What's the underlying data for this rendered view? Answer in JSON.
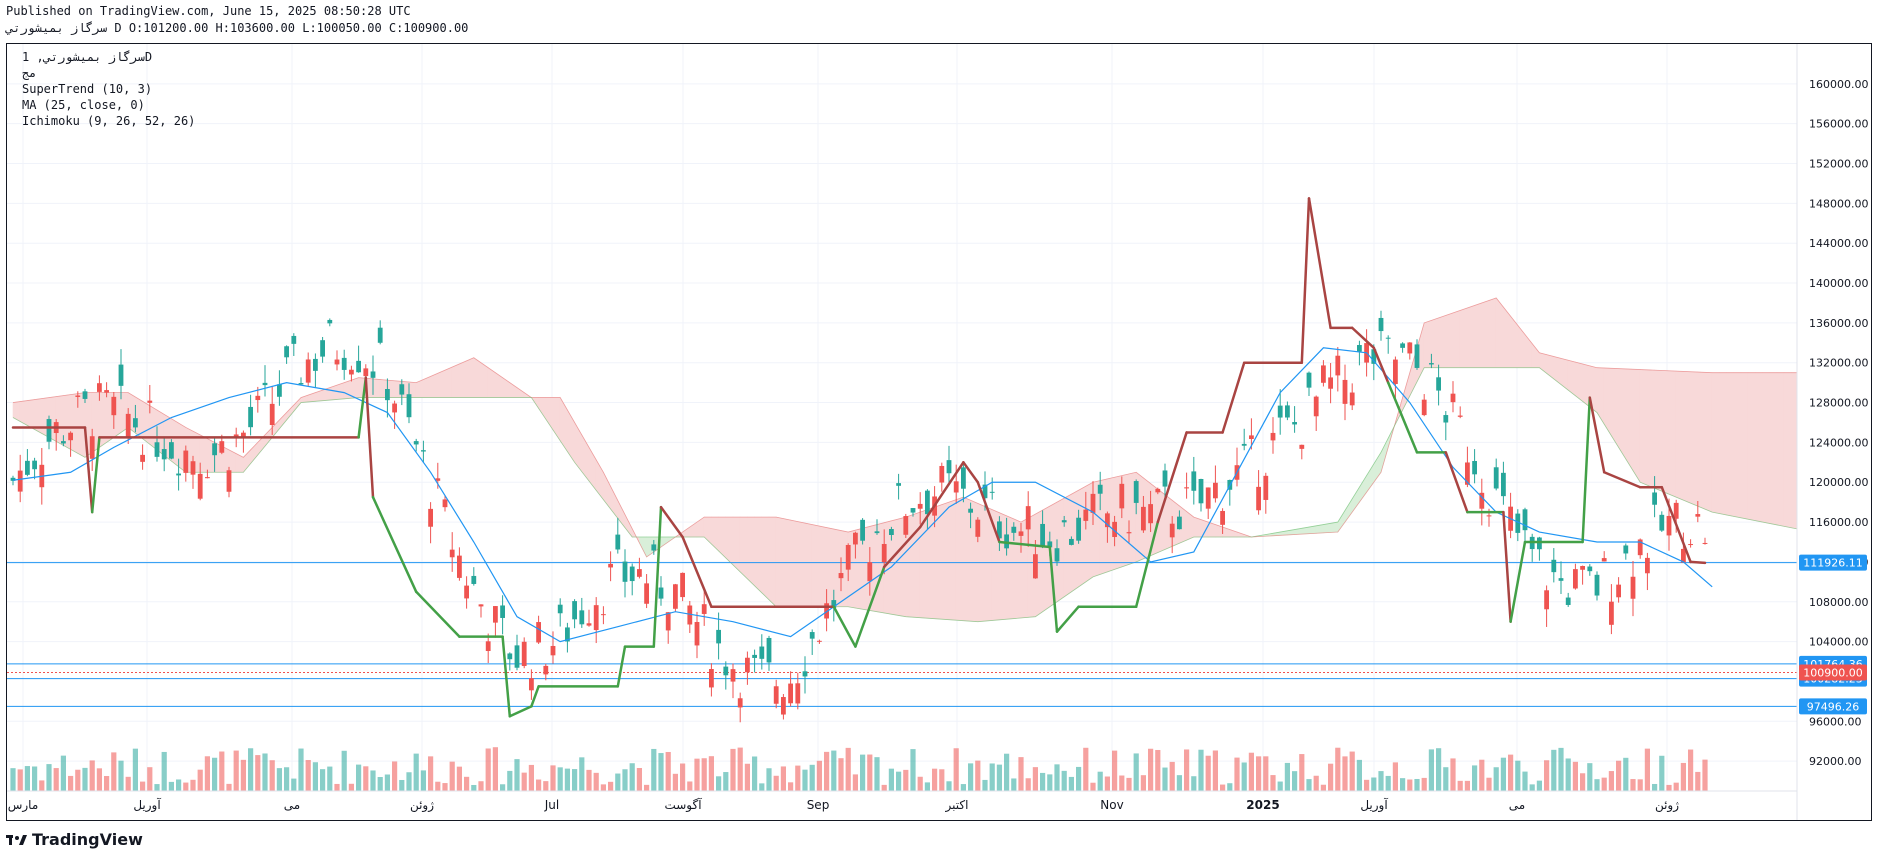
{
  "header": {
    "published": "Published on TradingView.com, June 15, 2025 08:50:28 UTC",
    "ohlc": "سرگاز بمیشورتي D O:101200.00 H:103600.00 L:100050.00 C:100900.00"
  },
  "legend": {
    "symbol": "سرگاز بمیشورتي, 1D",
    "sub": "مج",
    "indicators": [
      "SuperTrend (10, 3)",
      "MA (25, close, 0)",
      "Ichimoku (9, 26, 52, 26)"
    ]
  },
  "footer": {
    "brand": "TradingView"
  },
  "colors": {
    "up": "#26a69a",
    "down": "#ef5350",
    "supertrend_up": "#43a047",
    "supertrend_down": "#a94442",
    "ma": "#2196f3",
    "cloud_bear": "#f8d9d9",
    "cloud_bull": "#d9efd9",
    "hline": "#2196f3",
    "price_tag": "#ef5350",
    "level_tag": "#2196f3"
  },
  "chart_data": {
    "type": "candlestick",
    "ylim": [
      89000,
      164000
    ],
    "yticks": [
      "160000.00",
      "156000.00",
      "152000.00",
      "148000.00",
      "144000.00",
      "140000.00",
      "136000.00",
      "132000.00",
      "128000.00",
      "124000.00",
      "120000.00",
      "116000.00",
      "112000.00",
      "108000.00",
      "104000.00",
      "96000.00",
      "92000.00"
    ],
    "xticks": [
      "مارس",
      "آوریل",
      "می",
      "ژوئن",
      "Jul",
      "آگوست",
      "Sep",
      "اکتبر",
      "Nov",
      "2025",
      "آوریل",
      "می",
      "ژوئن"
    ],
    "last_price": "100900.00",
    "horizontal_levels": [
      {
        "value": 111926.11,
        "label": "111926.11"
      },
      {
        "value": 101764.36,
        "label": "101764.36"
      },
      {
        "value": 100282.23,
        "label": "100282.23"
      },
      {
        "value": 97496.26,
        "label": "97496.26"
      }
    ],
    "series": [
      {
        "name": "SuperTrend",
        "points": [
          [
            0,
            125500
          ],
          [
            10,
            125500
          ],
          [
            11,
            117000
          ],
          [
            12,
            124500
          ],
          [
            48,
            124500
          ],
          [
            49,
            130500
          ],
          [
            50,
            118500
          ],
          [
            56,
            109000
          ],
          [
            62,
            104500
          ],
          [
            68,
            104500
          ],
          [
            69,
            96500
          ],
          [
            72,
            97500
          ],
          [
            73,
            99500
          ],
          [
            84,
            99500
          ],
          [
            85,
            103500
          ],
          [
            89,
            103500
          ],
          [
            90,
            117500
          ],
          [
            93,
            114500
          ],
          [
            97,
            107500
          ],
          [
            114,
            107500
          ],
          [
            117,
            103500
          ],
          [
            121,
            111500
          ],
          [
            126,
            115500
          ],
          [
            132,
            122000
          ],
          [
            134,
            120000
          ],
          [
            137,
            114000
          ],
          [
            144,
            113500
          ],
          [
            145,
            105000
          ],
          [
            148,
            107500
          ],
          [
            156,
            107500
          ],
          [
            159,
            116000
          ],
          [
            163,
            125000
          ],
          [
            168,
            125000
          ],
          [
            171,
            132000
          ],
          [
            179,
            132000
          ],
          [
            180,
            148500
          ],
          [
            183,
            135500
          ],
          [
            186,
            135500
          ],
          [
            189,
            133500
          ],
          [
            191,
            130000
          ],
          [
            195,
            123000
          ],
          [
            199,
            123000
          ],
          [
            202,
            117000
          ],
          [
            207,
            117000
          ],
          [
            208,
            106000
          ],
          [
            210,
            114000
          ],
          [
            218,
            114000
          ],
          [
            219,
            128500
          ],
          [
            221,
            121000
          ],
          [
            226,
            119500
          ],
          [
            229,
            119500
          ],
          [
            233,
            112000
          ],
          [
            235,
            111900
          ]
        ]
      },
      {
        "name": "MA",
        "points": [
          [
            0,
            120200
          ],
          [
            8,
            121000
          ],
          [
            14,
            123500
          ],
          [
            22,
            126500
          ],
          [
            30,
            128500
          ],
          [
            38,
            130000
          ],
          [
            46,
            129000
          ],
          [
            52,
            127000
          ],
          [
            58,
            121000
          ],
          [
            64,
            114000
          ],
          [
            70,
            106500
          ],
          [
            76,
            104000
          ],
          [
            84,
            105500
          ],
          [
            92,
            107000
          ],
          [
            100,
            106000
          ],
          [
            108,
            104500
          ],
          [
            114,
            107500
          ],
          [
            122,
            111500
          ],
          [
            130,
            117500
          ],
          [
            136,
            120000
          ],
          [
            142,
            120000
          ],
          [
            150,
            117000
          ],
          [
            158,
            112000
          ],
          [
            164,
            113000
          ],
          [
            170,
            121000
          ],
          [
            176,
            129000
          ],
          [
            182,
            133500
          ],
          [
            188,
            133000
          ],
          [
            194,
            128000
          ],
          [
            200,
            121500
          ],
          [
            206,
            117000
          ],
          [
            212,
            115000
          ],
          [
            220,
            114000
          ],
          [
            226,
            114000
          ],
          [
            232,
            112000
          ],
          [
            236,
            109500
          ]
        ]
      },
      {
        "name": "Cloud-upper",
        "points": [
          [
            0,
            128000
          ],
          [
            10,
            129000
          ],
          [
            16,
            129000
          ],
          [
            24,
            125500
          ],
          [
            32,
            122500
          ],
          [
            40,
            128500
          ],
          [
            48,
            130500
          ],
          [
            56,
            130000
          ],
          [
            64,
            132500
          ],
          [
            72,
            128500
          ],
          [
            76,
            128500
          ],
          [
            82,
            121000
          ],
          [
            88,
            112500
          ],
          [
            96,
            116500
          ],
          [
            106,
            116500
          ],
          [
            116,
            115000
          ],
          [
            124,
            116500
          ],
          [
            132,
            118500
          ],
          [
            140,
            116000
          ],
          [
            150,
            120000
          ],
          [
            156,
            121000
          ],
          [
            164,
            116500
          ],
          [
            172,
            114500
          ],
          [
            184,
            115000
          ],
          [
            190,
            121000
          ],
          [
            196,
            136000
          ],
          [
            206,
            138500
          ],
          [
            212,
            133000
          ],
          [
            220,
            131500
          ],
          [
            236,
            131000
          ],
          [
            250,
            131000
          ]
        ]
      },
      {
        "name": "Cloud-lower",
        "points": [
          [
            0,
            126500
          ],
          [
            10,
            122500
          ],
          [
            16,
            125500
          ],
          [
            24,
            121000
          ],
          [
            32,
            121000
          ],
          [
            40,
            128000
          ],
          [
            48,
            128500
          ],
          [
            56,
            128500
          ],
          [
            64,
            128500
          ],
          [
            72,
            128500
          ],
          [
            78,
            122000
          ],
          [
            86,
            114500
          ],
          [
            96,
            114500
          ],
          [
            106,
            107500
          ],
          [
            116,
            107500
          ],
          [
            124,
            106500
          ],
          [
            134,
            106000
          ],
          [
            142,
            106500
          ],
          [
            150,
            110500
          ],
          [
            156,
            112000
          ],
          [
            164,
            114500
          ],
          [
            172,
            114500
          ],
          [
            184,
            116000
          ],
          [
            190,
            123000
          ],
          [
            196,
            131500
          ],
          [
            206,
            131500
          ],
          [
            212,
            131500
          ],
          [
            220,
            127000
          ],
          [
            226,
            120000
          ],
          [
            236,
            117000
          ],
          [
            250,
            115000
          ]
        ]
      }
    ]
  }
}
